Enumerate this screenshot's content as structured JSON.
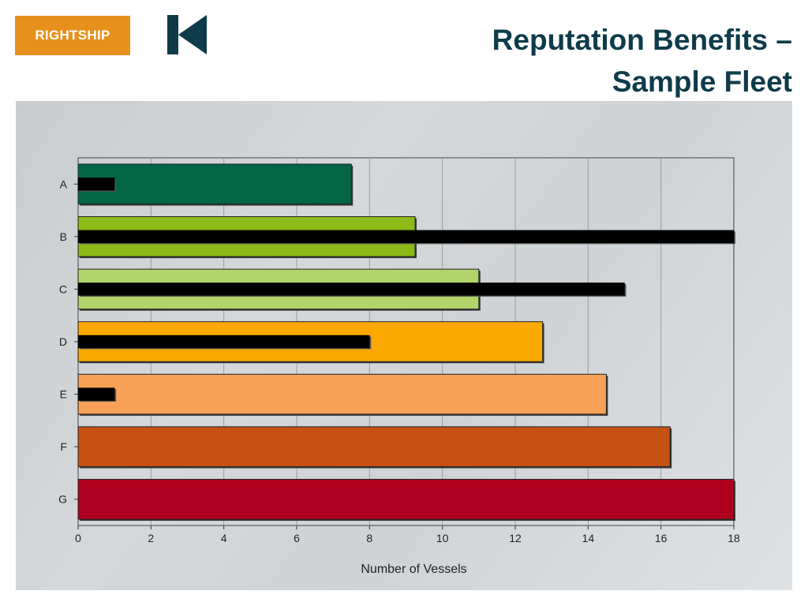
{
  "header": {
    "brand_text": "RIGHTSHIP",
    "brand_color": "#e7901c",
    "mark_color": "#0d3b4a",
    "title_line1": "Reputation Benefits –",
    "title_line2": "Sample Fleet"
  },
  "chart_data": {
    "type": "bar",
    "orientation": "horizontal",
    "categories": [
      "A",
      "B",
      "C",
      "D",
      "E",
      "F",
      "G"
    ],
    "series": [
      {
        "values": [
          7.5,
          9.25,
          11,
          12.75,
          14.5,
          16.25,
          18
        ],
        "colors": [
          "#046645",
          "#8cba17",
          "#b2d56b",
          "#fba800",
          "#f7a156",
          "#c55213",
          "#b0001f"
        ]
      },
      {
        "values": [
          1,
          18,
          15,
          8,
          1,
          0,
          0
        ],
        "colors": [
          "#000000"
        ]
      }
    ],
    "xlabel": "Number of Vessels",
    "xlim": [
      0,
      18
    ],
    "xticks": [
      0,
      2,
      4,
      6,
      8,
      10,
      12,
      14,
      16,
      18
    ],
    "grid": "vertical"
  }
}
